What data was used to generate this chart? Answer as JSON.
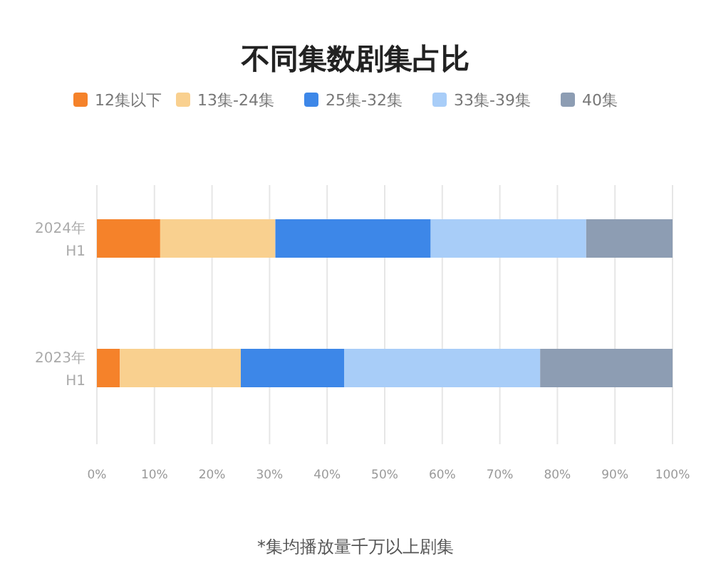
{
  "chart_data": {
    "type": "bar",
    "orientation": "horizontal",
    "stacked": true,
    "title": "不同集数剧集占比",
    "categories": [
      "2024年\nH1",
      "2023年\nH1"
    ],
    "series": [
      {
        "name": "12集以下",
        "color": "#f5822a",
        "values": [
          11,
          4
        ]
      },
      {
        "name": "13集-24集",
        "color": "#f9d08f",
        "values": [
          20,
          21
        ]
      },
      {
        "name": "25集-32集",
        "color": "#3d87e8",
        "values": [
          27,
          18
        ]
      },
      {
        "name": "33集-39集",
        "color": "#a8cdf8",
        "values": [
          27,
          34
        ]
      },
      {
        "name": "40集",
        "color": "#8d9db3",
        "values": [
          15,
          23
        ]
      }
    ],
    "xlim": [
      0,
      100
    ],
    "xticks": [
      {
        "value": 0,
        "label": "0%"
      },
      {
        "value": 10,
        "label": "10%"
      },
      {
        "value": 20,
        "label": "20%"
      },
      {
        "value": 30,
        "label": "30%"
      },
      {
        "value": 40,
        "label": "40%"
      },
      {
        "value": 50,
        "label": "50%"
      },
      {
        "value": 60,
        "label": "60%"
      },
      {
        "value": 70,
        "label": "70%"
      },
      {
        "value": 80,
        "label": "80%"
      },
      {
        "value": 90,
        "label": "90%"
      },
      {
        "value": 100,
        "label": "100%"
      }
    ],
    "grid": "x",
    "legend": "top",
    "annotations": [
      "*集均播放量千万以上剧集"
    ]
  }
}
